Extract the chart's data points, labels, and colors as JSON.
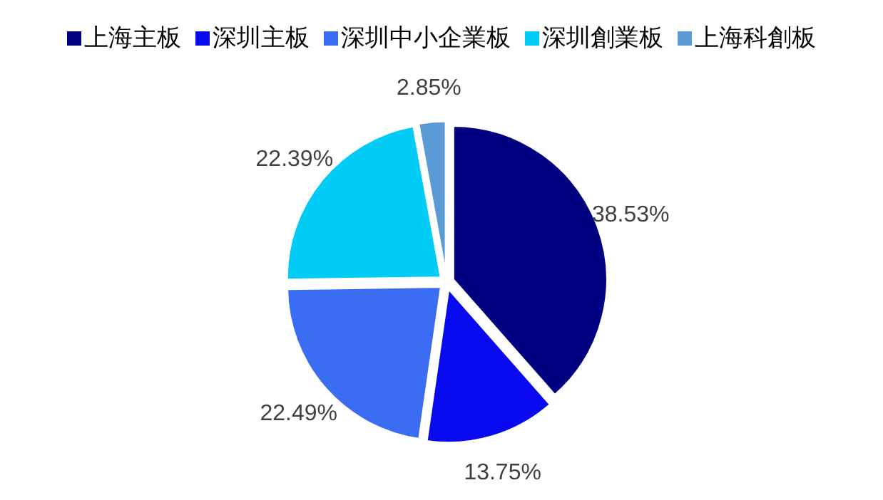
{
  "chart_data": {
    "type": "pie",
    "categories": [
      "上海主板",
      "深圳主板",
      "深圳中小企業板",
      "深圳創業板",
      "上海科創板"
    ],
    "values": [
      38.53,
      13.75,
      22.49,
      22.39,
      2.85
    ],
    "value_labels": [
      "38.53%",
      "13.75%",
      "22.49%",
      "22.39%",
      "2.85%"
    ],
    "colors": [
      "#000080",
      "#0a0af0",
      "#3a6cf4",
      "#00ccf5",
      "#5b9bd5"
    ],
    "legend": "top"
  }
}
